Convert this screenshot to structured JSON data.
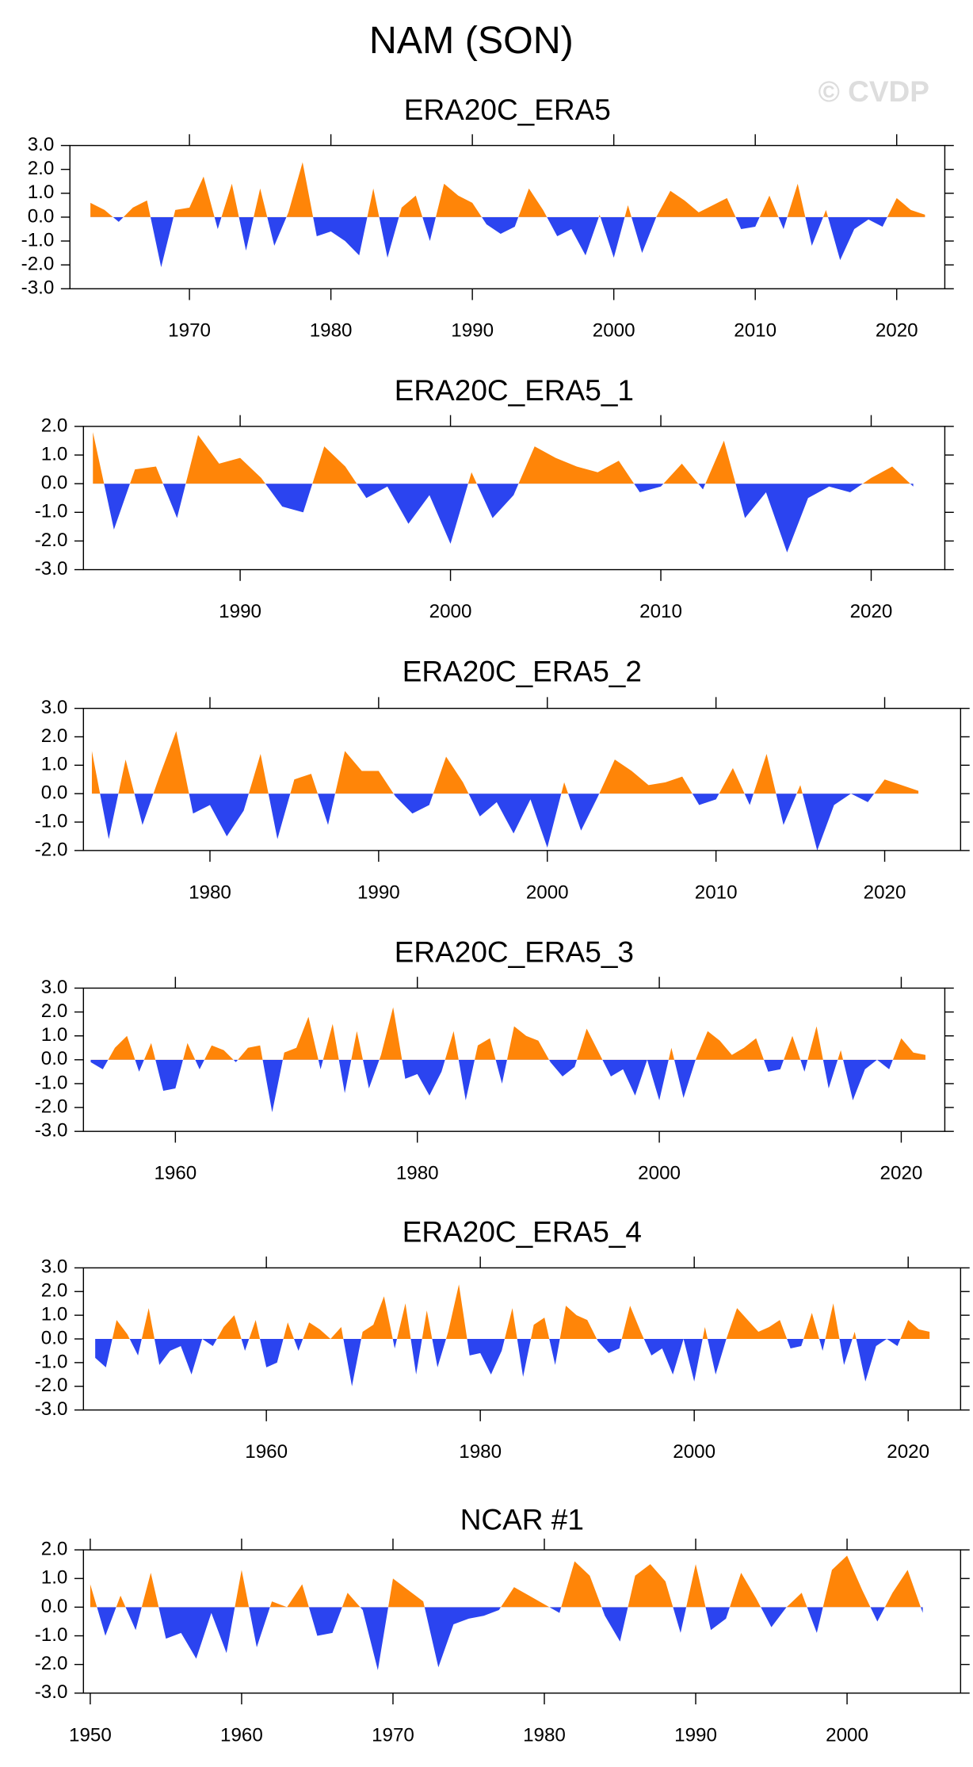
{
  "title": "NAM (SON)",
  "watermark": "© CVDP",
  "chart_data": [
    {
      "type": "area",
      "title": "ERA20C_ERA5",
      "fill_above": "#ff8508",
      "fill_below": "#2b44f0",
      "x": [
        1963,
        1964,
        1965,
        1966,
        1967,
        1968,
        1969,
        1970,
        1971,
        1972,
        1973,
        1974,
        1975,
        1976,
        1977,
        1978,
        1979,
        1980,
        1981,
        1982,
        1983,
        1984,
        1985,
        1986,
        1987,
        1988,
        1989,
        1990,
        1991,
        1992,
        1993,
        1994,
        1995,
        1996,
        1997,
        1998,
        1999,
        2000,
        2001,
        2002,
        2003,
        2004,
        2005,
        2006,
        2007,
        2008,
        2009,
        2010,
        2011,
        2012,
        2013,
        2014,
        2015,
        2016,
        2017,
        2018,
        2019,
        2020,
        2021,
        2022
      ],
      "values": [
        0.6,
        0.3,
        -0.2,
        0.4,
        0.7,
        -2.1,
        0.3,
        0.4,
        1.7,
        -0.5,
        1.4,
        -1.4,
        1.2,
        -1.2,
        0.2,
        2.3,
        -0.8,
        -0.6,
        -1.0,
        -1.6,
        1.2,
        -1.7,
        0.4,
        0.9,
        -1.0,
        1.4,
        0.9,
        0.6,
        -0.3,
        -0.7,
        -0.4,
        1.2,
        0.3,
        -0.8,
        -0.5,
        -1.6,
        0.1,
        -1.7,
        0.5,
        -1.5,
        0.0,
        1.1,
        0.7,
        0.2,
        0.5,
        0.8,
        -0.5,
        -0.4,
        0.9,
        -0.5,
        1.4,
        -1.2,
        0.3,
        -1.8,
        -0.5,
        -0.1,
        -0.4,
        0.8,
        0.3,
        0.1
      ],
      "xlim": [
        1961.55,
        2023.4
      ],
      "xticks": [
        1970,
        1980,
        1990,
        2000,
        2010,
        2020
      ],
      "ylim": [
        -3,
        3
      ],
      "yticks": [
        {
          "value": 3,
          "label": "3.0"
        },
        {
          "value": 2,
          "label": "2.0"
        },
        {
          "value": 1,
          "label": "1.0"
        },
        {
          "value": 0,
          "label": "0.0"
        },
        {
          "value": -1,
          "label": "-1.0"
        },
        {
          "value": -2,
          "label": "-2.0"
        },
        {
          "value": -3,
          "label": "-3.0"
        }
      ]
    },
    {
      "type": "area",
      "title": "ERA20C_ERA5_1",
      "fill_above": "#ff8508",
      "fill_below": "#2b44f0",
      "x": [
        1983,
        1984,
        1985,
        1986,
        1987,
        1988,
        1989,
        1990,
        1991,
        1992,
        1993,
        1994,
        1995,
        1996,
        1997,
        1998,
        1999,
        2000,
        2001,
        2002,
        2003,
        2004,
        2005,
        2006,
        2007,
        2008,
        2009,
        2010,
        2011,
        2012,
        2013,
        2014,
        2015,
        2016,
        2017,
        2018,
        2019,
        2020,
        2021,
        2022
      ],
      "values": [
        1.8,
        -1.6,
        0.5,
        0.6,
        -1.2,
        1.7,
        0.7,
        0.9,
        0.2,
        -0.8,
        -1.0,
        1.3,
        0.6,
        -0.5,
        -0.1,
        -1.4,
        -0.4,
        -2.1,
        0.4,
        -1.2,
        -0.4,
        1.3,
        0.9,
        0.6,
        0.4,
        0.8,
        -0.3,
        -0.1,
        0.7,
        -0.2,
        1.5,
        -1.2,
        -0.3,
        -2.4,
        -0.5,
        -0.1,
        -0.3,
        0.2,
        0.6,
        -0.1
      ],
      "xlim": [
        1982.55,
        2023.5
      ],
      "xticks": [
        1990,
        2000,
        2010,
        2020
      ],
      "ylim": [
        -3,
        2
      ],
      "yticks": [
        {
          "value": 2,
          "label": "2.0"
        },
        {
          "value": 1,
          "label": "1.0"
        },
        {
          "value": 0,
          "label": "0.0"
        },
        {
          "value": -1,
          "label": "-1.0"
        },
        {
          "value": -2,
          "label": "-2.0"
        },
        {
          "value": -3,
          "label": "-3.0"
        }
      ]
    },
    {
      "type": "area",
      "title": "ERA20C_ERA5_2",
      "fill_above": "#ff8508",
      "fill_below": "#2b44f0",
      "x": [
        1973,
        1974,
        1975,
        1976,
        1977,
        1978,
        1979,
        1980,
        1981,
        1982,
        1983,
        1984,
        1985,
        1986,
        1987,
        1988,
        1989,
        1990,
        1991,
        1992,
        1993,
        1994,
        1995,
        1996,
        1997,
        1998,
        1999,
        2000,
        2001,
        2002,
        2003,
        2004,
        2005,
        2006,
        2007,
        2008,
        2009,
        2010,
        2011,
        2012,
        2013,
        2014,
        2015,
        2016,
        2017,
        2018,
        2019,
        2020,
        2021,
        2022
      ],
      "values": [
        1.5,
        -1.6,
        1.2,
        -1.1,
        0.6,
        2.2,
        -0.7,
        -0.4,
        -1.5,
        -0.6,
        1.4,
        -1.6,
        0.5,
        0.7,
        -1.1,
        1.5,
        0.8,
        0.8,
        -0.1,
        -0.7,
        -0.4,
        1.3,
        0.4,
        -0.8,
        -0.3,
        -1.4,
        -0.2,
        -1.9,
        0.4,
        -1.3,
        -0.1,
        1.2,
        0.8,
        0.3,
        0.4,
        0.6,
        -0.4,
        -0.2,
        0.9,
        -0.4,
        1.4,
        -1.1,
        0.3,
        -2.0,
        -0.4,
        0.0,
        -0.3,
        0.5,
        0.3,
        0.1
      ],
      "xlim": [
        1972.5,
        2024.5
      ],
      "xticks": [
        1980,
        1990,
        2000,
        2010,
        2020
      ],
      "ylim": [
        -2,
        3
      ],
      "yticks": [
        {
          "value": 3,
          "label": "3.0"
        },
        {
          "value": 2,
          "label": "2.0"
        },
        {
          "value": 1,
          "label": "1.0"
        },
        {
          "value": 0,
          "label": "0.0"
        },
        {
          "value": -1,
          "label": "-1.0"
        },
        {
          "value": -2,
          "label": "-2.0"
        }
      ]
    },
    {
      "type": "area",
      "title": "ERA20C_ERA5_3",
      "fill_above": "#ff8508",
      "fill_below": "#2b44f0",
      "x": [
        1953,
        1954,
        1955,
        1956,
        1957,
        1958,
        1959,
        1960,
        1961,
        1962,
        1963,
        1964,
        1965,
        1966,
        1967,
        1968,
        1969,
        1970,
        1971,
        1972,
        1973,
        1974,
        1975,
        1976,
        1977,
        1978,
        1979,
        1980,
        1981,
        1982,
        1983,
        1984,
        1985,
        1986,
        1987,
        1988,
        1989,
        1990,
        1991,
        1992,
        1993,
        1994,
        1995,
        1996,
        1997,
        1998,
        1999,
        2000,
        2001,
        2002,
        2003,
        2004,
        2005,
        2006,
        2007,
        2008,
        2009,
        2010,
        2011,
        2012,
        2013,
        2014,
        2015,
        2016,
        2017,
        2018,
        2019,
        2020,
        2021,
        2022
      ],
      "values": [
        -0.1,
        -0.4,
        0.5,
        1.0,
        -0.5,
        0.7,
        -1.3,
        -1.2,
        0.7,
        -0.4,
        0.6,
        0.4,
        -0.1,
        0.5,
        0.6,
        -2.2,
        0.3,
        0.5,
        1.8,
        -0.4,
        1.5,
        -1.4,
        1.2,
        -1.2,
        0.2,
        2.2,
        -0.8,
        -0.6,
        -1.5,
        -0.5,
        1.2,
        -1.7,
        0.6,
        0.9,
        -1.0,
        1.4,
        1.0,
        0.8,
        -0.1,
        -0.7,
        -0.3,
        1.3,
        0.3,
        -0.7,
        -0.4,
        -1.5,
        0.0,
        -1.7,
        0.5,
        -1.6,
        0.0,
        1.2,
        0.8,
        0.2,
        0.5,
        0.9,
        -0.5,
        -0.4,
        1.0,
        -0.5,
        1.4,
        -1.2,
        0.4,
        -1.7,
        -0.4,
        0.0,
        -0.4,
        0.9,
        0.3,
        0.2
      ],
      "xlim": [
        1952.4,
        2023.6
      ],
      "xticks": [
        1960,
        1980,
        2000,
        2020
      ],
      "ylim": [
        -3,
        3
      ],
      "yticks": [
        {
          "value": 3,
          "label": "3.0"
        },
        {
          "value": 2,
          "label": "2.0"
        },
        {
          "value": 1,
          "label": "1.0"
        },
        {
          "value": 0,
          "label": "0.0"
        },
        {
          "value": -1,
          "label": "-1.0"
        },
        {
          "value": -2,
          "label": "-2.0"
        },
        {
          "value": -3,
          "label": "-3.0"
        }
      ]
    },
    {
      "type": "area",
      "title": "ERA20C_ERA5_4",
      "fill_above": "#ff8508",
      "fill_below": "#2b44f0",
      "x": [
        1944,
        1945,
        1946,
        1947,
        1948,
        1949,
        1950,
        1951,
        1952,
        1953,
        1954,
        1955,
        1956,
        1957,
        1958,
        1959,
        1960,
        1961,
        1962,
        1963,
        1964,
        1965,
        1966,
        1967,
        1968,
        1969,
        1970,
        1971,
        1972,
        1973,
        1974,
        1975,
        1976,
        1977,
        1978,
        1979,
        1980,
        1981,
        1982,
        1983,
        1984,
        1985,
        1986,
        1987,
        1988,
        1989,
        1990,
        1991,
        1992,
        1993,
        1994,
        1995,
        1996,
        1997,
        1998,
        1999,
        2000,
        2001,
        2002,
        2003,
        2004,
        2005,
        2006,
        2007,
        2008,
        2009,
        2010,
        2011,
        2012,
        2013,
        2014,
        2015,
        2016,
        2017,
        2018,
        2019,
        2020,
        2021,
        2022
      ],
      "values": [
        -0.8,
        -1.2,
        0.8,
        0.2,
        -0.7,
        1.3,
        -1.1,
        -0.5,
        -0.3,
        -1.5,
        0.0,
        -0.3,
        0.5,
        1.0,
        -0.5,
        0.8,
        -1.2,
        -1.0,
        0.7,
        -0.5,
        0.7,
        0.4,
        0.0,
        0.5,
        -2.0,
        0.3,
        0.6,
        1.8,
        -0.4,
        1.5,
        -1.5,
        1.2,
        -1.2,
        0.3,
        2.3,
        -0.7,
        -0.6,
        -1.5,
        -0.5,
        1.3,
        -1.6,
        0.6,
        0.9,
        -1.1,
        1.4,
        1.0,
        0.8,
        -0.1,
        -0.6,
        -0.4,
        1.4,
        0.3,
        -0.7,
        -0.4,
        -1.5,
        0.0,
        -1.8,
        0.5,
        -1.5,
        0.0,
        1.3,
        0.8,
        0.3,
        0.5,
        0.8,
        -0.4,
        -0.3,
        1.1,
        -0.5,
        1.5,
        -1.1,
        0.3,
        -1.8,
        -0.3,
        0.0,
        -0.3,
        0.8,
        0.4,
        0.3
      ],
      "xlim": [
        1942.9,
        2024.9
      ],
      "xticks": [
        1960,
        1980,
        2000,
        2020
      ],
      "ylim": [
        -3,
        3
      ],
      "yticks": [
        {
          "value": 3,
          "label": "3.0"
        },
        {
          "value": 2,
          "label": "2.0"
        },
        {
          "value": 1,
          "label": "1.0"
        },
        {
          "value": 0,
          "label": "0.0"
        },
        {
          "value": -1,
          "label": "-1.0"
        },
        {
          "value": -2,
          "label": "-2.0"
        },
        {
          "value": -3,
          "label": "-3.0"
        }
      ]
    },
    {
      "type": "area",
      "title": "NCAR #1",
      "fill_above": "#ff8508",
      "fill_below": "#2b44f0",
      "x": [
        1950,
        1951,
        1952,
        1953,
        1954,
        1955,
        1956,
        1957,
        1958,
        1959,
        1960,
        1961,
        1962,
        1963,
        1964,
        1965,
        1966,
        1967,
        1968,
        1969,
        1970,
        1971,
        1972,
        1973,
        1974,
        1975,
        1976,
        1977,
        1978,
        1979,
        1980,
        1981,
        1982,
        1983,
        1984,
        1985,
        1986,
        1987,
        1988,
        1989,
        1990,
        1991,
        1992,
        1993,
        1994,
        1995,
        1996,
        1997,
        1998,
        1999,
        2000,
        2001,
        2002,
        2003,
        2004,
        2005
      ],
      "values": [
        0.8,
        -1.0,
        0.4,
        -0.8,
        1.2,
        -1.1,
        -0.9,
        -1.8,
        -0.2,
        -1.6,
        1.3,
        -1.4,
        0.2,
        0.0,
        0.8,
        -1.0,
        -0.9,
        0.5,
        -0.1,
        -2.2,
        1.0,
        0.6,
        0.2,
        -2.1,
        -0.6,
        -0.4,
        -0.3,
        -0.1,
        0.7,
        0.4,
        0.1,
        -0.2,
        1.6,
        1.1,
        -0.3,
        -1.2,
        1.1,
        1.5,
        0.9,
        -0.9,
        1.5,
        -0.8,
        -0.4,
        1.2,
        0.3,
        -0.7,
        0.0,
        0.5,
        -0.9,
        1.3,
        1.8,
        0.6,
        -0.5,
        0.5,
        1.3,
        -0.2
      ],
      "xlim": [
        1949.55,
        2007.5
      ],
      "xticks": [
        1950,
        1960,
        1970,
        1980,
        1990,
        2000
      ],
      "ylim": [
        -3,
        2
      ],
      "yticks": [
        {
          "value": 2,
          "label": "2.0"
        },
        {
          "value": 1,
          "label": "1.0"
        },
        {
          "value": 0,
          "label": "0.0"
        },
        {
          "value": -1,
          "label": "-1.0"
        },
        {
          "value": -2,
          "label": "-2.0"
        },
        {
          "value": -3,
          "label": "-3.0"
        }
      ]
    }
  ]
}
